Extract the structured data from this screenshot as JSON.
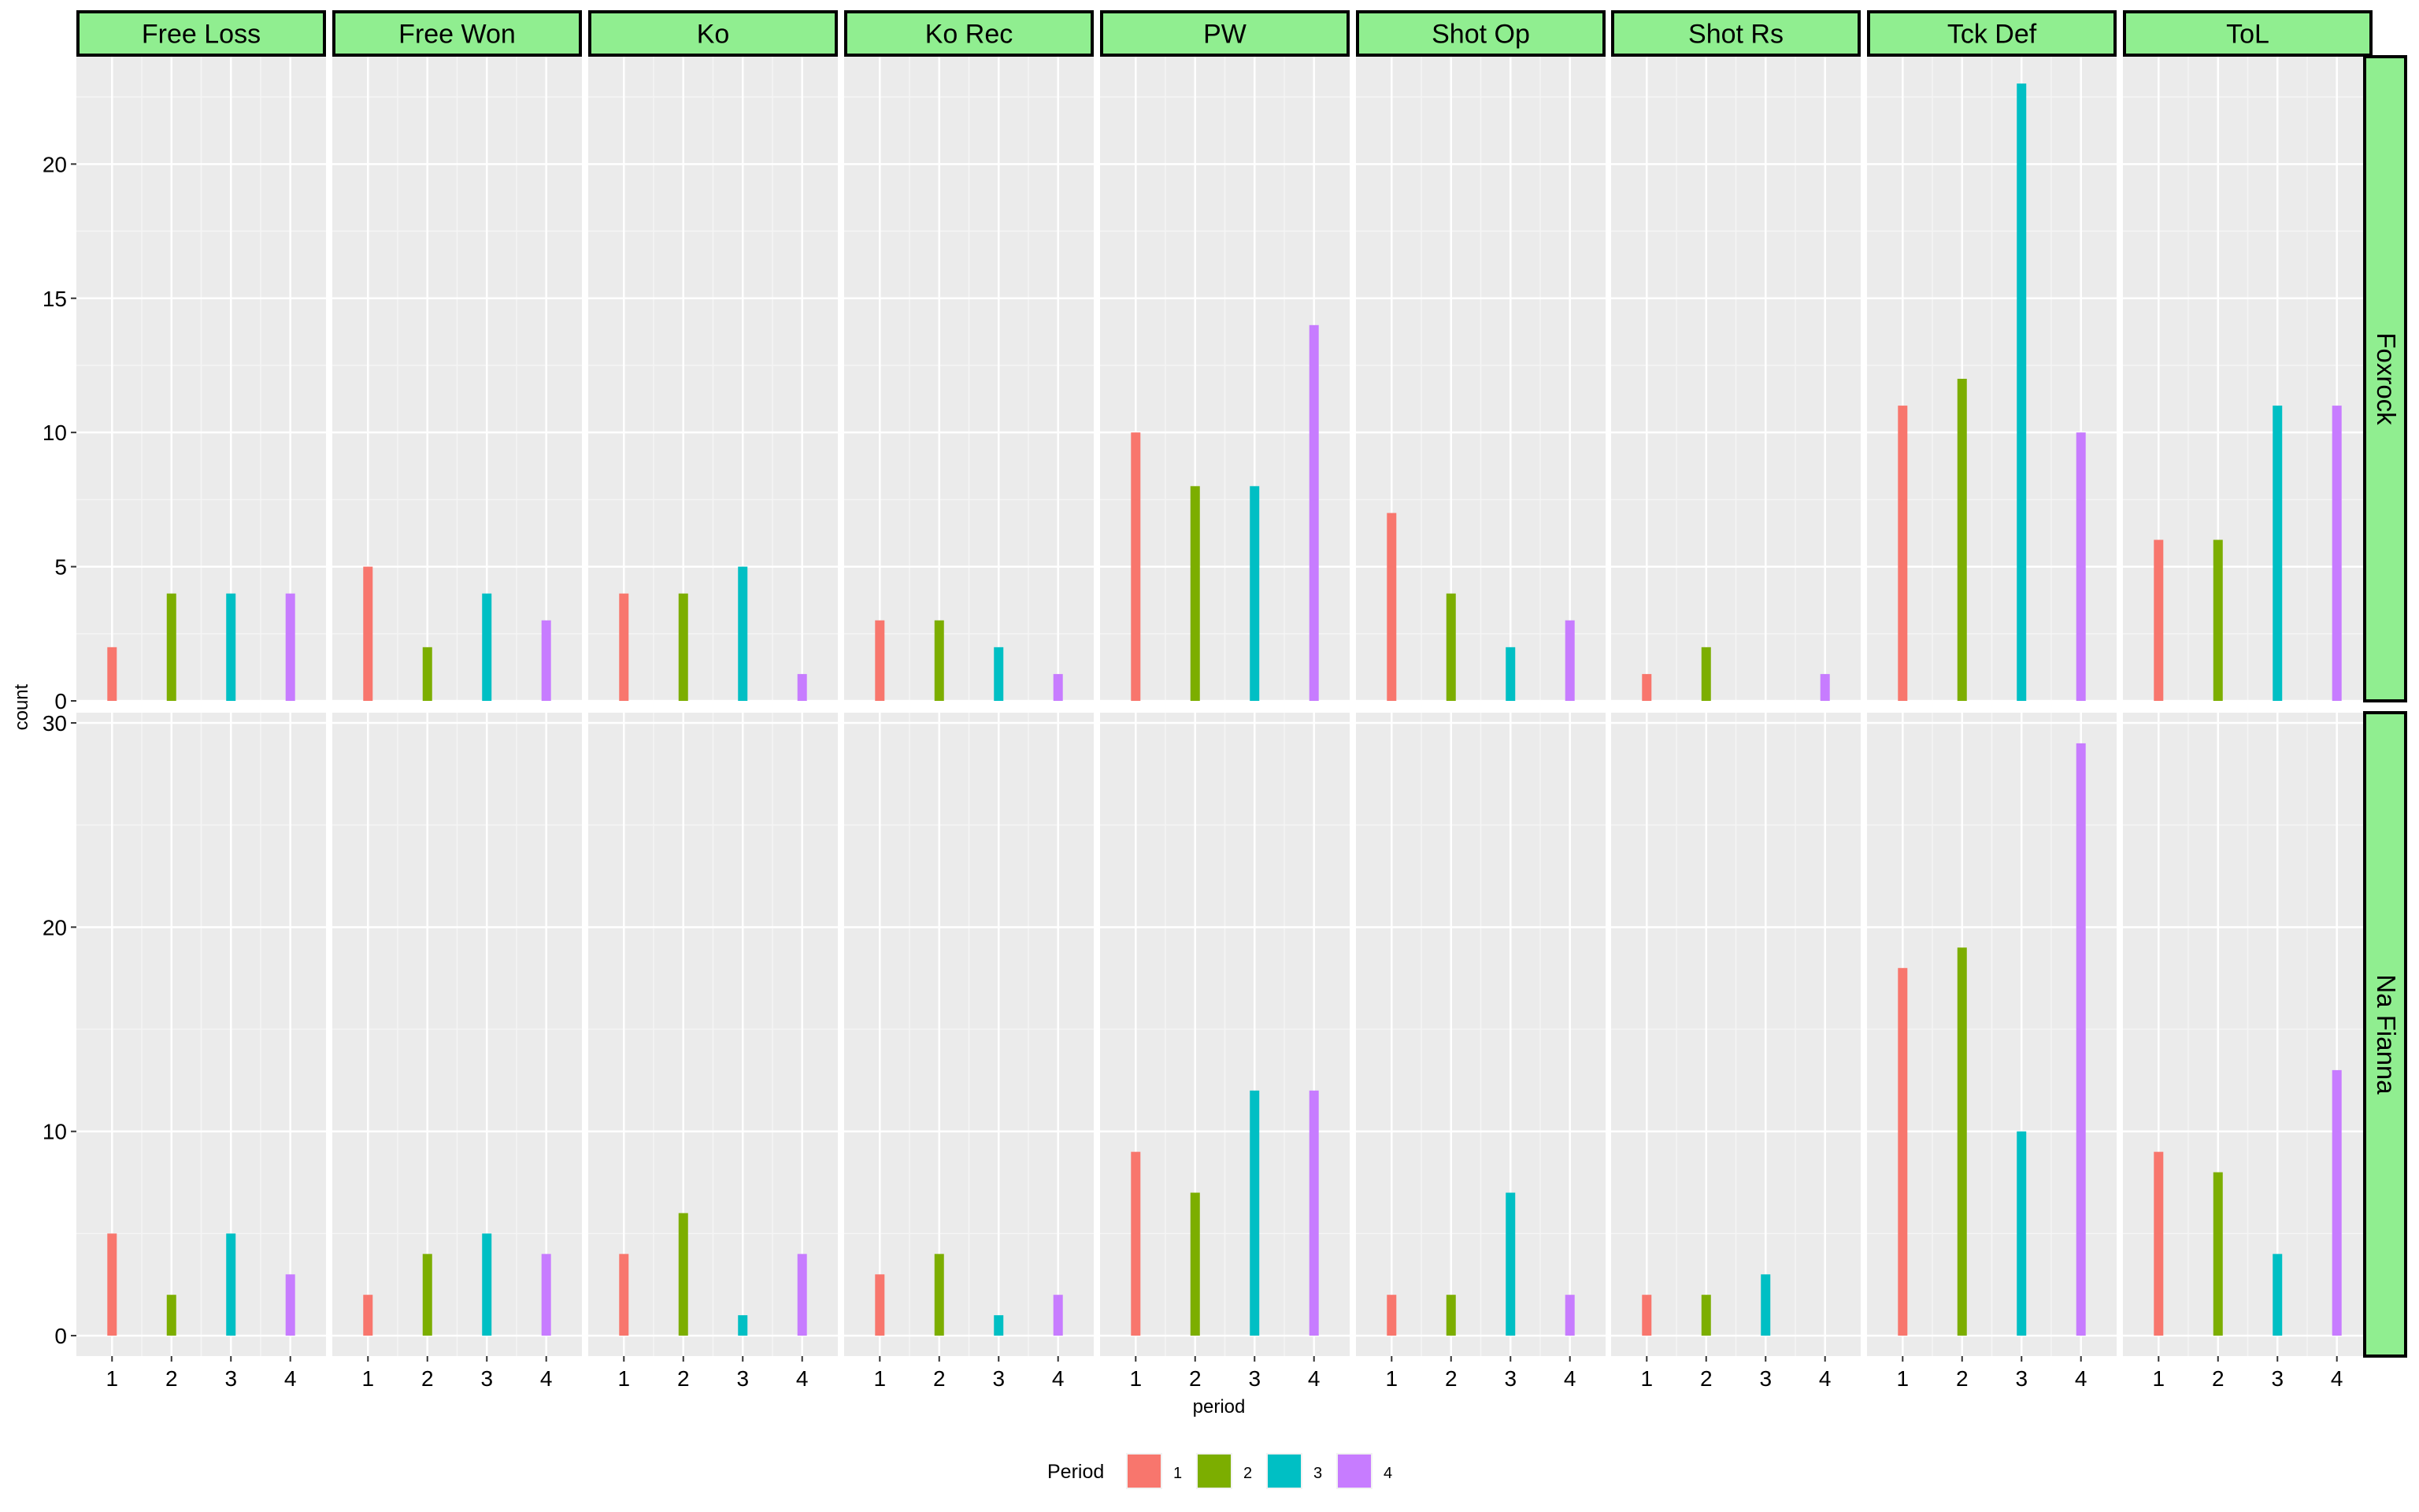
{
  "chart_data": {
    "type": "bar",
    "facet_columns": [
      "Free Loss",
      "Free Won",
      "Ko",
      "Ko Rec",
      "PW",
      "Shot Op",
      "Shot Rs",
      "Tck Def",
      "ToL"
    ],
    "facet_rows": [
      "Foxrock",
      "Na Fianna"
    ],
    "xlabel": "period",
    "ylabel": "count",
    "x_ticks": [
      "1",
      "2",
      "3",
      "4"
    ],
    "row_scales": [
      {
        "ylim": [
          0,
          24
        ],
        "ticks": [
          0,
          5,
          10,
          15,
          20
        ]
      },
      {
        "ylim": [
          -1,
          30.5
        ],
        "ticks": [
          0,
          10,
          20,
          30
        ]
      }
    ],
    "legend": {
      "title": "Period",
      "position": "bottom",
      "entries": [
        "1",
        "2",
        "3",
        "4"
      ]
    },
    "colors": {
      "1": "#F8766D",
      "2": "#7CAE00",
      "3": "#00BFC4",
      "4": "#C77CFF"
    },
    "panel_background": "#EBEBEB",
    "strip_background": "#90EE90",
    "grid": true,
    "data": {
      "Foxrock": {
        "Free Loss": [
          2,
          4,
          4,
          4
        ],
        "Free Won": [
          5,
          2,
          4,
          3
        ],
        "Ko": [
          4,
          4,
          5,
          1
        ],
        "Ko Rec": [
          3,
          3,
          2,
          1
        ],
        "PW": [
          10,
          8,
          8,
          14
        ],
        "Shot Op": [
          7,
          4,
          2,
          3
        ],
        "Shot Rs": [
          1,
          2,
          0,
          1
        ],
        "Tck Def": [
          11,
          12,
          23,
          10
        ],
        "ToL": [
          6,
          6,
          11,
          11
        ]
      },
      "Na Fianna": {
        "Free Loss": [
          5,
          2,
          5,
          3
        ],
        "Free Won": [
          2,
          4,
          5,
          4
        ],
        "Ko": [
          4,
          6,
          1,
          4
        ],
        "Ko Rec": [
          3,
          4,
          1,
          2
        ],
        "PW": [
          9,
          7,
          12,
          12
        ],
        "Shot Op": [
          2,
          2,
          7,
          2
        ],
        "Shot Rs": [
          2,
          2,
          3,
          0
        ],
        "Tck Def": [
          18,
          19,
          10,
          29
        ],
        "ToL": [
          9,
          8,
          4,
          13
        ]
      }
    }
  }
}
